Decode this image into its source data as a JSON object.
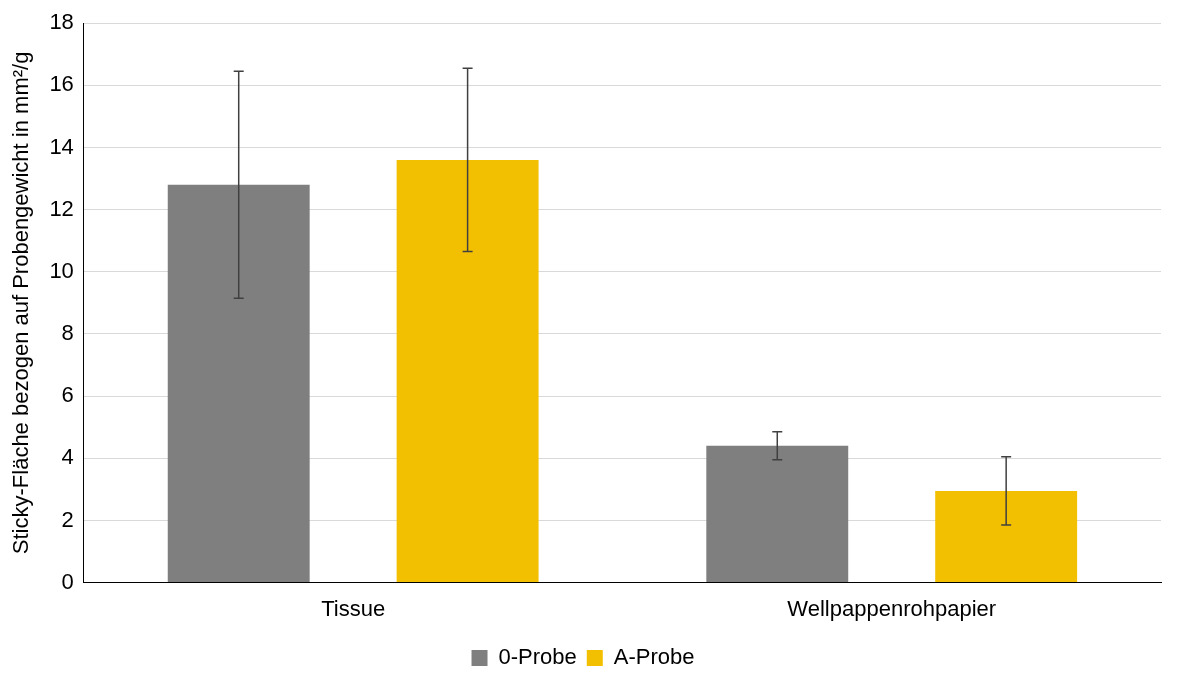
{
  "chart_data": {
    "type": "bar",
    "ylabel": "Sticky-Fläche bezogen auf Probengewicht in mm²/g",
    "categories": [
      "Tissue",
      "Wellpappenrohpapier"
    ],
    "series": [
      {
        "name": "0-Probe",
        "color": "#7f7f7f",
        "values": [
          12.8,
          4.4
        ],
        "errors": [
          3.65,
          0.45
        ]
      },
      {
        "name": "A-Probe",
        "color": "#f2c000",
        "values": [
          13.6,
          2.95
        ],
        "errors": [
          2.95,
          1.1
        ]
      }
    ],
    "ylim": [
      0,
      18
    ],
    "yticks": [
      0,
      2,
      4,
      6,
      8,
      10,
      12,
      14,
      16,
      18
    ],
    "grid": "y",
    "legend": "bottom"
  }
}
